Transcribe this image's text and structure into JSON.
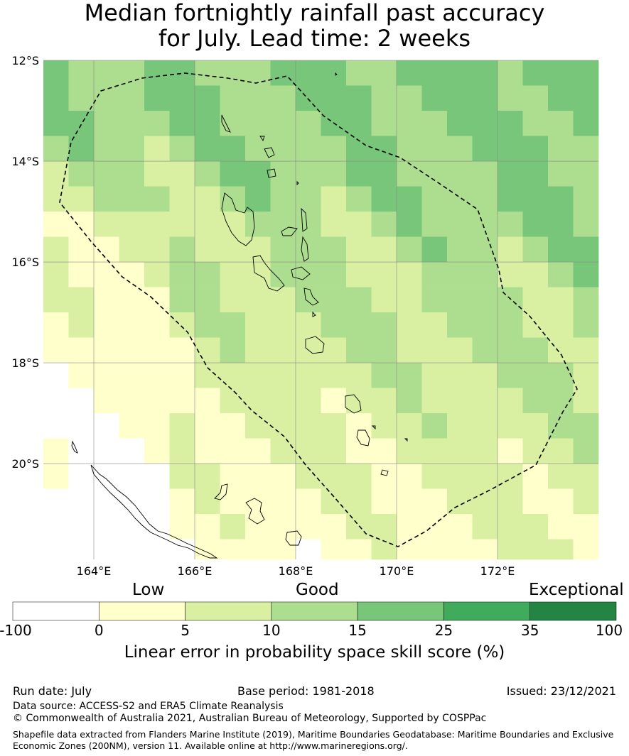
{
  "title": {
    "line1": "Median fortnightly rainfall past accuracy",
    "line2": "for July. Lead time: 2 weeks"
  },
  "map": {
    "lon_range": [
      163,
      174
    ],
    "lat_range": [
      -21.9,
      -12
    ],
    "lat_ticks": [
      {
        "value": -12,
        "label": "12°S"
      },
      {
        "value": -14,
        "label": "14°S"
      },
      {
        "value": -16,
        "label": "16°S"
      },
      {
        "value": -18,
        "label": "18°S"
      },
      {
        "value": -20,
        "label": "20°S"
      }
    ],
    "lon_ticks": [
      {
        "value": 164,
        "label": "164°E"
      },
      {
        "value": 166,
        "label": "166°E"
      },
      {
        "value": 168,
        "label": "168°E"
      },
      {
        "value": 170,
        "label": "170°E"
      },
      {
        "value": 172,
        "label": "172°E"
      }
    ],
    "grid_cell_deg": 0.5,
    "grid_lines": true,
    "eez_boundary_style": "dashed"
  },
  "colorbar": {
    "categories": [
      {
        "label": "Low"
      },
      {
        "label": "Good"
      },
      {
        "label": "Exceptional"
      }
    ],
    "bins": [
      {
        "from": -100,
        "to": 0,
        "color": "#ffffff"
      },
      {
        "from": 0,
        "to": 5,
        "color": "#ffffcc"
      },
      {
        "from": 5,
        "to": 10,
        "color": "#d9f0a3"
      },
      {
        "from": 10,
        "to": 15,
        "color": "#addd8e"
      },
      {
        "from": 15,
        "to": 25,
        "color": "#78c679"
      },
      {
        "from": 25,
        "to": 35,
        "color": "#41ab5d"
      },
      {
        "from": 35,
        "to": 100,
        "color": "#238443"
      }
    ],
    "tick_labels": [
      "-100",
      "0",
      "5",
      "10",
      "15",
      "25",
      "35",
      "100"
    ],
    "title": "Linear error in probability space skill score (%)"
  },
  "footer": {
    "run_date": "Run date: July",
    "base_period": "Base period: 1981-2018",
    "issued": "Issued: 23/12/2021",
    "data_source": "Data source: ACCESS-S2 and ERA5 Climate Reanalysis",
    "copyright": "© Commonwealth of Australia 2021, Australian Bureau of Meteorology, Supported by COSPPac",
    "shapefile_note": "Shapefile data extracted from Flanders Marine Institute (2019), Maritime Boundaries Geodatabase: Maritime Boundaries and Exclusive Economic Zones (200NM), version 11. Available online at http://www.marineregions.org/."
  }
}
